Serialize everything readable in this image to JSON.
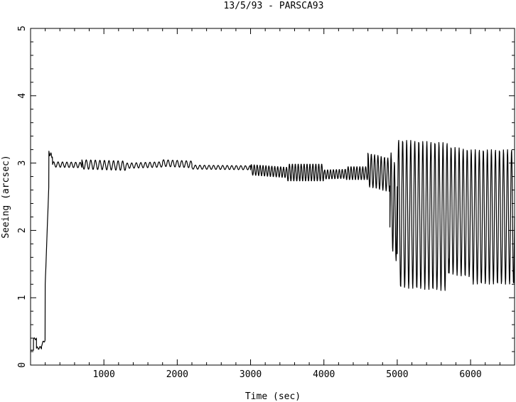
{
  "chart_data": {
    "type": "line",
    "title": "13/5/93  - PARSCA93",
    "xlabel": "Time (sec)",
    "ylabel": "Seeing (arcsec)",
    "xlim": [
      0,
      6600
    ],
    "ylim": [
      0,
      5
    ],
    "x_ticks": [
      1000,
      2000,
      3000,
      4000,
      5000,
      6000
    ],
    "y_ticks": [
      0,
      1,
      2,
      3,
      4,
      5
    ],
    "grid": false,
    "series": [
      {
        "color": "#000000",
        "segments": [
          {
            "x0": 0,
            "x1": 40,
            "base": 0.22,
            "base_end": 0.22,
            "amp": 0.0,
            "period": 100
          },
          {
            "x0": 40,
            "x1": 80,
            "base": 0.38,
            "base_end": 0.4,
            "amp": 0.02,
            "period": 40
          },
          {
            "x0": 80,
            "x1": 150,
            "base": 0.25,
            "base_end": 0.26,
            "amp": 0.02,
            "period": 40
          },
          {
            "x0": 150,
            "x1": 200,
            "base": 0.3,
            "base_end": 0.38,
            "amp": 0.02,
            "period": 40
          },
          {
            "x0": 200,
            "x1": 250,
            "base": 1.2,
            "base_end": 2.7,
            "amp": 0.0,
            "period": 100
          },
          {
            "x0": 250,
            "x1": 300,
            "base": 3.15,
            "base_end": 3.1,
            "amp": 0.03,
            "period": 30
          },
          {
            "x0": 300,
            "x1": 700,
            "base": 2.98,
            "base_end": 2.97,
            "amp": 0.04,
            "period": 60
          },
          {
            "x0": 700,
            "x1": 1300,
            "base": 2.98,
            "base_end": 2.96,
            "amp": 0.07,
            "period": 62
          },
          {
            "x0": 1300,
            "x1": 1800,
            "base": 2.96,
            "base_end": 2.98,
            "amp": 0.04,
            "period": 62
          },
          {
            "x0": 1800,
            "x1": 2200,
            "base": 3.0,
            "base_end": 2.98,
            "amp": 0.05,
            "period": 62
          },
          {
            "x0": 2200,
            "x1": 3000,
            "base": 2.94,
            "base_end": 2.93,
            "amp": 0.03,
            "period": 62
          },
          {
            "x0": 3000,
            "x1": 3500,
            "base": 2.9,
            "base_end": 2.86,
            "amp": 0.08,
            "period": 40
          },
          {
            "x0": 3500,
            "x1": 4000,
            "base": 2.86,
            "base_end": 2.86,
            "amp": 0.13,
            "period": 40
          },
          {
            "x0": 4000,
            "x1": 4300,
            "base": 2.83,
            "base_end": 2.84,
            "amp": 0.07,
            "period": 40
          },
          {
            "x0": 4300,
            "x1": 4600,
            "base": 2.85,
            "base_end": 2.85,
            "amp": 0.1,
            "period": 40
          },
          {
            "x0": 4600,
            "x1": 4900,
            "base": 2.9,
            "base_end": 2.82,
            "amp": 0.25,
            "period": 45
          },
          {
            "x0": 4900,
            "x1": 5000,
            "base": 2.5,
            "base_end": 2.2,
            "amp": 0.7,
            "period": 45
          },
          {
            "x0": 5000,
            "x1": 5700,
            "base": 2.25,
            "base_end": 2.2,
            "amp": 1.1,
            "period": 55
          },
          {
            "x0": 5700,
            "x1": 6000,
            "base": 2.3,
            "base_end": 2.25,
            "amp": 0.95,
            "period": 55
          },
          {
            "x0": 6000,
            "x1": 6600,
            "base": 2.2,
            "base_end": 2.2,
            "amp": 1.0,
            "period": 55
          }
        ]
      }
    ]
  }
}
